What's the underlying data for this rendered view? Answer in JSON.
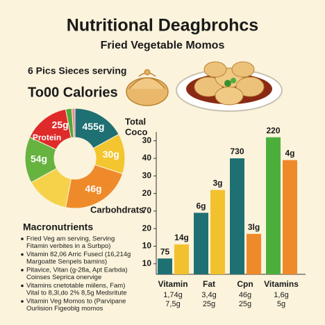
{
  "header": {
    "title": "Nutritional Deagbrohcs",
    "subtitle": "Fried Vegetable Momos",
    "serving": "6 Pics Sieces serving",
    "calories": "To00 Calories"
  },
  "chart_data": [
    {
      "type": "pie",
      "values": [
        17,
        13,
        23,
        14,
        15,
        15,
        2,
        1
      ],
      "colors": [
        "#1f7072",
        "#f3c52f",
        "#ef8a2b",
        "#f6d24a",
        "#67b33f",
        "#df2a2a",
        "#4fa83b",
        "#e8869a"
      ],
      "value_labels": [
        "455g",
        "30g",
        "46g",
        null,
        "54g",
        "25g",
        null,
        null
      ],
      "names": [
        null,
        null,
        null,
        null,
        null,
        "Protein",
        null,
        null
      ],
      "annotations": [
        "Total",
        "Coco",
        "Carbohdrats"
      ]
    },
    {
      "type": "bar",
      "categories": [
        "Vitamin",
        "Fat",
        "Cpn",
        "Vitamins"
      ],
      "sublabels": [
        [
          "1,74g",
          "7,5g"
        ],
        [
          "3,4g",
          "25g"
        ],
        [
          "46g",
          "25g"
        ],
        [
          "1,6g",
          "5g"
        ]
      ],
      "series": [
        {
          "values": [
            13,
            39,
            70,
            82
          ],
          "value_labels": [
            "75",
            "6g",
            "730",
            "220"
          ],
          "colors": [
            "#1f7072",
            "#1f7072",
            "#1f7072",
            "#4caf3c"
          ]
        },
        {
          "values": [
            21,
            52,
            27,
            69
          ],
          "value_labels": [
            "14g",
            "3g",
            "3lg",
            "4g"
          ],
          "colors": [
            "#f2c12e",
            "#f2c12e",
            "#ef8a2b",
            "#ef8a2b"
          ]
        }
      ],
      "ylim": [
        4,
        84
      ],
      "yticks": [
        10,
        {
          "value": 20,
          "label": "10"
        },
        {
          "value": 30,
          "label": "20"
        },
        {
          "value": 40,
          "label": "70"
        },
        {
          "value": 50,
          "label": "20"
        },
        {
          "value": 60,
          "label": "30"
        },
        {
          "value": 70,
          "label": "40"
        },
        {
          "value": 80,
          "label": "30"
        }
      ],
      "grid": false
    }
  ],
  "macronutrients": {
    "heading": "Macronutrients",
    "items": [
      [
        "Fried Veg am serving, Serving",
        "Fitamin verbites in a Surbpo)"
      ],
      [
        "Vitamin 82,06 Arric Fusecl (16,214g",
        "Margoatte Senpels bamins)"
      ],
      [
        "Pitavice, Vitan (g-28a, Apt Earbda)",
        "Coinses Seprica onervige"
      ],
      [
        "Vitamins cnetotable miilens, Fam)",
        "Vital to 8,3l,do 2% 8,5g Medsritute"
      ],
      [
        "Vitamin Veg Momos to (Parvipane",
        "Ourlision Figeoblg momos"
      ]
    ]
  }
}
